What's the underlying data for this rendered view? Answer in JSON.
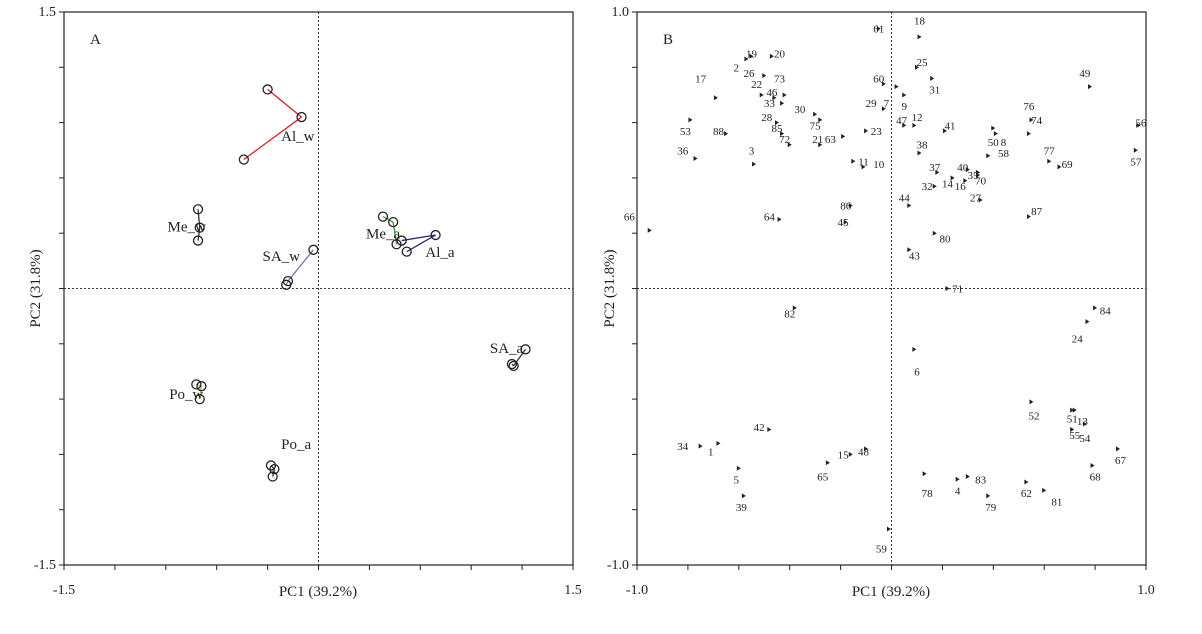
{
  "chart_data": [
    {
      "type": "scatter",
      "panel_label": "A",
      "xlabel": "PC1 (39.2%)",
      "ylabel": "PC2 (31.8%)",
      "xlim": [
        -1.5,
        1.5
      ],
      "ylim": [
        -1.5,
        1.5
      ],
      "x_tick_labels": [
        "-1.5",
        "1.5"
      ],
      "y_tick_labels": [
        "1.5",
        "-1.5"
      ],
      "grid": false,
      "zero_lines": true,
      "groups": [
        {
          "label": "Al_w",
          "color": "#d0202a",
          "points": [
            [
              -0.3,
              1.08
            ],
            [
              -0.1,
              0.93
            ],
            [
              -0.44,
              0.7
            ]
          ],
          "label_at": [
            -0.22,
            0.8
          ]
        },
        {
          "label": "Me_w",
          "color": "#333333",
          "points": [
            [
              -0.71,
              0.43
            ],
            [
              -0.7,
              0.33
            ],
            [
              -0.71,
              0.26
            ]
          ],
          "label_at": [
            -0.89,
            0.31
          ]
        },
        {
          "label": "SA_w",
          "color": "#6a78b8",
          "points": [
            [
              -0.03,
              0.21
            ],
            [
              -0.18,
              0.04
            ],
            [
              -0.19,
              0.02
            ]
          ],
          "label_at": [
            -0.33,
            0.15
          ]
        },
        {
          "label": "Me_a",
          "color": "#2a9a3a",
          "points": [
            [
              0.38,
              0.39
            ],
            [
              0.44,
              0.36
            ],
            [
              0.46,
              0.24
            ]
          ],
          "label_at": [
            0.28,
            0.27
          ]
        },
        {
          "label": "Al_a",
          "color": "#2a2a7a",
          "points": [
            [
              0.49,
              0.26
            ],
            [
              0.69,
              0.29
            ],
            [
              0.52,
              0.2
            ]
          ],
          "label_at": [
            0.63,
            0.17
          ]
        },
        {
          "label": "SA_a",
          "color": "#333333",
          "points": [
            [
              1.22,
              -0.33
            ],
            [
              1.15,
              -0.42
            ],
            [
              1.14,
              -0.41
            ]
          ],
          "label_at": [
            1.01,
            -0.35
          ]
        },
        {
          "label": "Po_w",
          "color": "#aac060",
          "points": [
            [
              -0.72,
              -0.52
            ],
            [
              -0.69,
              -0.53
            ],
            [
              -0.7,
              -0.6
            ]
          ],
          "label_at": [
            -0.88,
            -0.6
          ]
        },
        {
          "label": "Po_a",
          "color": "#333333",
          "points": [
            [
              -0.28,
              -0.96
            ],
            [
              -0.26,
              -0.98
            ],
            [
              -0.27,
              -1.02
            ]
          ],
          "label_at": [
            -0.22,
            -0.87
          ]
        }
      ]
    },
    {
      "type": "scatter",
      "panel_label": "B",
      "xlabel": "PC1 (39.2%)",
      "ylabel": "PC2 (31.8%)",
      "xlim": [
        -1.0,
        1.0
      ],
      "ylim": [
        -1.0,
        1.0
      ],
      "x_tick_labels": [
        "-1.0",
        "1.0"
      ],
      "y_tick_labels": [
        "1.0",
        "-1.0"
      ],
      "grid": false,
      "zero_lines": true,
      "points": [
        {
          "label": "1",
          "x": -0.68,
          "y": -0.56,
          "lx": -0.71,
          "ly": -0.59
        },
        {
          "label": "2",
          "x": -0.57,
          "y": 0.83,
          "lx": -0.61,
          "ly": 0.8
        },
        {
          "label": "3",
          "x": -0.54,
          "y": 0.45,
          "lx": -0.55,
          "ly": 0.5
        },
        {
          "label": "4",
          "x": 0.26,
          "y": -0.69,
          "lx": 0.26,
          "ly": -0.73
        },
        {
          "label": "5",
          "x": -0.6,
          "y": -0.65,
          "lx": -0.61,
          "ly": -0.69
        },
        {
          "label": "6",
          "x": 0.09,
          "y": -0.22,
          "lx": 0.1,
          "ly": -0.3
        },
        {
          "label": "7",
          "x": 0.02,
          "y": 0.73,
          "lx": -0.02,
          "ly": 0.67
        },
        {
          "label": "8",
          "x": 0.41,
          "y": 0.56,
          "lx": 0.44,
          "ly": 0.53
        },
        {
          "label": "9",
          "x": 0.05,
          "y": 0.7,
          "lx": 0.05,
          "ly": 0.66
        },
        {
          "label": "10",
          "x": -0.11,
          "y": 0.44,
          "lx": -0.05,
          "ly": 0.45
        },
        {
          "label": "11",
          "x": -0.15,
          "y": 0.46,
          "lx": -0.11,
          "ly": 0.46
        },
        {
          "label": "12",
          "x": 0.09,
          "y": 0.59,
          "lx": 0.1,
          "ly": 0.62
        },
        {
          "label": "13",
          "x": 0.72,
          "y": -0.44,
          "lx": 0.75,
          "ly": -0.48
        },
        {
          "label": "14",
          "x": 0.24,
          "y": 0.4,
          "lx": 0.22,
          "ly": 0.38
        },
        {
          "label": "15",
          "x": -0.16,
          "y": -0.6,
          "lx": -0.19,
          "ly": -0.6
        },
        {
          "label": "16",
          "x": 0.29,
          "y": 0.39,
          "lx": 0.27,
          "ly": 0.37
        },
        {
          "label": "17",
          "x": -0.69,
          "y": 0.69,
          "lx": -0.75,
          "ly": 0.76
        },
        {
          "label": "18",
          "x": 0.11,
          "y": 0.91,
          "lx": 0.11,
          "ly": 0.97
        },
        {
          "label": "19",
          "x": -0.55,
          "y": 0.84,
          "lx": -0.55,
          "ly": 0.85
        },
        {
          "label": "20",
          "x": -0.47,
          "y": 0.84,
          "lx": -0.44,
          "ly": 0.85
        },
        {
          "label": "21",
          "x": -0.28,
          "y": 0.52,
          "lx": -0.29,
          "ly": 0.54
        },
        {
          "label": "22",
          "x": -0.51,
          "y": 0.7,
          "lx": -0.53,
          "ly": 0.74
        },
        {
          "label": "23",
          "x": -0.1,
          "y": 0.57,
          "lx": -0.06,
          "ly": 0.57
        },
        {
          "label": "24",
          "x": 0.77,
          "y": -0.12,
          "lx": 0.73,
          "ly": -0.18
        },
        {
          "label": "25",
          "x": 0.1,
          "y": 0.8,
          "lx": 0.12,
          "ly": 0.82
        },
        {
          "label": "26",
          "x": -0.5,
          "y": 0.77,
          "lx": -0.56,
          "ly": 0.78
        },
        {
          "label": "27",
          "x": 0.35,
          "y": 0.32,
          "lx": 0.33,
          "ly": 0.33
        },
        {
          "label": "28",
          "x": -0.45,
          "y": 0.6,
          "lx": -0.49,
          "ly": 0.62
        },
        {
          "label": "29",
          "x": -0.03,
          "y": 0.65,
          "lx": -0.08,
          "ly": 0.67
        },
        {
          "label": "30",
          "x": -0.3,
          "y": 0.63,
          "lx": -0.36,
          "ly": 0.65
        },
        {
          "label": "31",
          "x": 0.16,
          "y": 0.76,
          "lx": 0.17,
          "ly": 0.72
        },
        {
          "label": "32",
          "x": 0.17,
          "y": 0.37,
          "lx": 0.14,
          "ly": 0.37
        },
        {
          "label": "33",
          "x": -0.43,
          "y": 0.67,
          "lx": -0.48,
          "ly": 0.67
        },
        {
          "label": "34",
          "x": -0.75,
          "y": -0.57,
          "lx": -0.82,
          "ly": -0.57
        },
        {
          "label": "35",
          "x": 0.34,
          "y": 0.42,
          "lx": 0.32,
          "ly": 0.41
        },
        {
          "label": "36",
          "x": -0.77,
          "y": 0.47,
          "lx": -0.82,
          "ly": 0.5
        },
        {
          "label": "37",
          "x": 0.18,
          "y": 0.42,
          "lx": 0.17,
          "ly": 0.44
        },
        {
          "label": "38",
          "x": 0.11,
          "y": 0.49,
          "lx": 0.12,
          "ly": 0.52
        },
        {
          "label": "39",
          "x": -0.58,
          "y": -0.75,
          "lx": -0.59,
          "ly": -0.79
        },
        {
          "label": "40",
          "x": 0.3,
          "y": 0.43,
          "lx": 0.28,
          "ly": 0.44
        },
        {
          "label": "41",
          "x": 0.21,
          "y": 0.57,
          "lx": 0.23,
          "ly": 0.59
        },
        {
          "label": "42",
          "x": -0.48,
          "y": -0.51,
          "lx": -0.52,
          "ly": -0.5
        },
        {
          "label": "43",
          "x": 0.07,
          "y": 0.14,
          "lx": 0.09,
          "ly": 0.12
        },
        {
          "label": "44",
          "x": 0.07,
          "y": 0.3,
          "lx": 0.05,
          "ly": 0.33
        },
        {
          "label": "45",
          "x": -0.18,
          "y": 0.24,
          "lx": -0.19,
          "ly": 0.24
        },
        {
          "label": "46",
          "x": -0.46,
          "y": 0.69,
          "lx": -0.47,
          "ly": 0.71
        },
        {
          "label": "47",
          "x": 0.05,
          "y": 0.59,
          "lx": 0.04,
          "ly": 0.61
        },
        {
          "label": "48",
          "x": -0.1,
          "y": -0.58,
          "lx": -0.11,
          "ly": -0.59
        },
        {
          "label": "49",
          "x": 0.78,
          "y": 0.73,
          "lx": 0.76,
          "ly": 0.78
        },
        {
          "label": "50",
          "x": 0.4,
          "y": 0.58,
          "lx": 0.4,
          "ly": 0.53
        },
        {
          "label": "51",
          "x": 0.71,
          "y": -0.44,
          "lx": 0.71,
          "ly": -0.47
        },
        {
          "label": "52",
          "x": 0.55,
          "y": -0.41,
          "lx": 0.56,
          "ly": -0.46
        },
        {
          "label": "53",
          "x": -0.79,
          "y": 0.61,
          "lx": -0.81,
          "ly": 0.57
        },
        {
          "label": "54",
          "x": 0.76,
          "y": -0.49,
          "lx": 0.76,
          "ly": -0.54
        },
        {
          "label": "55",
          "x": 0.71,
          "y": -0.51,
          "lx": 0.72,
          "ly": -0.53
        },
        {
          "label": "56",
          "x": 0.97,
          "y": 0.59,
          "lx": 0.98,
          "ly": 0.6
        },
        {
          "label": "57",
          "x": 0.96,
          "y": 0.5,
          "lx": 0.96,
          "ly": 0.46
        },
        {
          "label": "58",
          "x": 0.38,
          "y": 0.48,
          "lx": 0.44,
          "ly": 0.49
        },
        {
          "label": "59",
          "x": -0.01,
          "y": -0.87,
          "lx": -0.04,
          "ly": -0.94
        },
        {
          "label": "60",
          "x": -0.03,
          "y": 0.74,
          "lx": -0.05,
          "ly": 0.76
        },
        {
          "label": "61",
          "x": -0.05,
          "y": 0.94,
          "lx": -0.05,
          "ly": 0.94
        },
        {
          "label": "62",
          "x": 0.53,
          "y": -0.7,
          "lx": 0.53,
          "ly": -0.74
        },
        {
          "label": "63",
          "x": -0.19,
          "y": 0.55,
          "lx": -0.24,
          "ly": 0.54
        },
        {
          "label": "64",
          "x": -0.44,
          "y": 0.25,
          "lx": -0.48,
          "ly": 0.26
        },
        {
          "label": "65",
          "x": -0.25,
          "y": -0.63,
          "lx": -0.27,
          "ly": -0.68
        },
        {
          "label": "66",
          "x": -0.95,
          "y": 0.21,
          "lx": -1.03,
          "ly": 0.26
        },
        {
          "label": "67",
          "x": 0.89,
          "y": -0.58,
          "lx": 0.9,
          "ly": -0.62
        },
        {
          "label": "68",
          "x": 0.79,
          "y": -0.64,
          "lx": 0.8,
          "ly": -0.68
        },
        {
          "label": "69",
          "x": 0.66,
          "y": 0.44,
          "lx": 0.69,
          "ly": 0.45
        },
        {
          "label": "70",
          "x": 0.34,
          "y": 0.41,
          "lx": 0.35,
          "ly": 0.39
        },
        {
          "label": "71",
          "x": 0.22,
          "y": 0.0,
          "lx": 0.26,
          "ly": 0.0
        },
        {
          "label": "72",
          "x": -0.4,
          "y": 0.52,
          "lx": -0.42,
          "ly": 0.54
        },
        {
          "label": "73",
          "x": -0.42,
          "y": 0.7,
          "lx": -0.44,
          "ly": 0.76
        },
        {
          "label": "74",
          "x": 0.54,
          "y": 0.56,
          "lx": 0.57,
          "ly": 0.61
        },
        {
          "label": "75",
          "x": -0.28,
          "y": 0.61,
          "lx": -0.3,
          "ly": 0.59
        },
        {
          "label": "76",
          "x": 0.55,
          "y": 0.61,
          "lx": 0.54,
          "ly": 0.66
        },
        {
          "label": "77",
          "x": 0.62,
          "y": 0.46,
          "lx": 0.62,
          "ly": 0.5
        },
        {
          "label": "78",
          "x": 0.13,
          "y": -0.67,
          "lx": 0.14,
          "ly": -0.74
        },
        {
          "label": "79",
          "x": 0.38,
          "y": -0.75,
          "lx": 0.39,
          "ly": -0.79
        },
        {
          "label": "80",
          "x": 0.17,
          "y": 0.2,
          "lx": 0.21,
          "ly": 0.18
        },
        {
          "label": "81",
          "x": 0.6,
          "y": -0.73,
          "lx": 0.65,
          "ly": -0.77
        },
        {
          "label": "82",
          "x": -0.38,
          "y": -0.07,
          "lx": -0.4,
          "ly": -0.09
        },
        {
          "label": "83",
          "x": 0.3,
          "y": -0.68,
          "lx": 0.35,
          "ly": -0.69
        },
        {
          "label": "84",
          "x": 0.8,
          "y": -0.07,
          "lx": 0.84,
          "ly": -0.08
        },
        {
          "label": "85",
          "x": -0.43,
          "y": 0.56,
          "lx": -0.45,
          "ly": 0.58
        },
        {
          "label": "86",
          "x": -0.16,
          "y": 0.3,
          "lx": -0.18,
          "ly": 0.3
        },
        {
          "label": "87",
          "x": 0.54,
          "y": 0.26,
          "lx": 0.57,
          "ly": 0.28
        },
        {
          "label": "88",
          "x": -0.65,
          "y": 0.56,
          "lx": -0.68,
          "ly": 0.57
        }
      ]
    }
  ]
}
